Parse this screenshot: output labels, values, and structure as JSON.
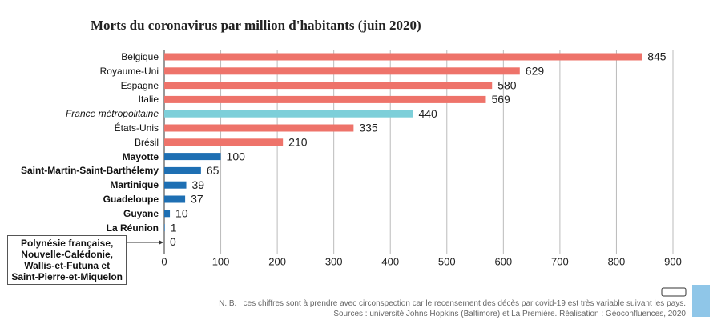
{
  "chart_data": {
    "type": "hbar",
    "title": "Morts du coronavirus par million d'habitants (juin 2020)",
    "categories": [
      "Belgique",
      "Royaume-Uni",
      "Espagne",
      "Italie",
      "France métropolitaine",
      "États-Unis",
      "Brésil",
      "Mayotte",
      "Saint-Martin-Saint-Barthélemy",
      "Martinique",
      "Guadeloupe",
      "Guyane",
      "La Réunion",
      "Polynésie française,\nNouvelle-Calédonie,\nWallis-et-Futuna et\nSaint-Pierre-et-Miquelon"
    ],
    "values": [
      845,
      629,
      580,
      569,
      440,
      335,
      210,
      100,
      65,
      39,
      37,
      10,
      1,
      0
    ],
    "colors": [
      "#ee736a",
      "#ee736a",
      "#ee736a",
      "#ee736a",
      "#7dcfd9",
      "#ee736a",
      "#ee736a",
      "#1e6fb3",
      "#1e6fb3",
      "#1e6fb3",
      "#1e6fb3",
      "#1e6fb3",
      "#1e6fb3",
      "#1e6fb3"
    ],
    "label_styles": [
      "normal",
      "normal",
      "normal",
      "normal",
      "italic",
      "normal",
      "normal",
      "bold",
      "bold",
      "bold",
      "bold",
      "bold",
      "bold",
      "bold"
    ],
    "xlim": [
      0,
      900
    ],
    "xticks": [
      0,
      100,
      200,
      300,
      400,
      500,
      600,
      700,
      800,
      900
    ],
    "grid": true,
    "notes": [
      "N. B. : ces chiffres sont à prendre avec circonspection car le recensement des décès par covid-19 est très variable suivant les pays.",
      "Sources : université Johns Hopkins (Baltimore) et La Première. Réalisation : Géoconfluences, 2020"
    ]
  }
}
